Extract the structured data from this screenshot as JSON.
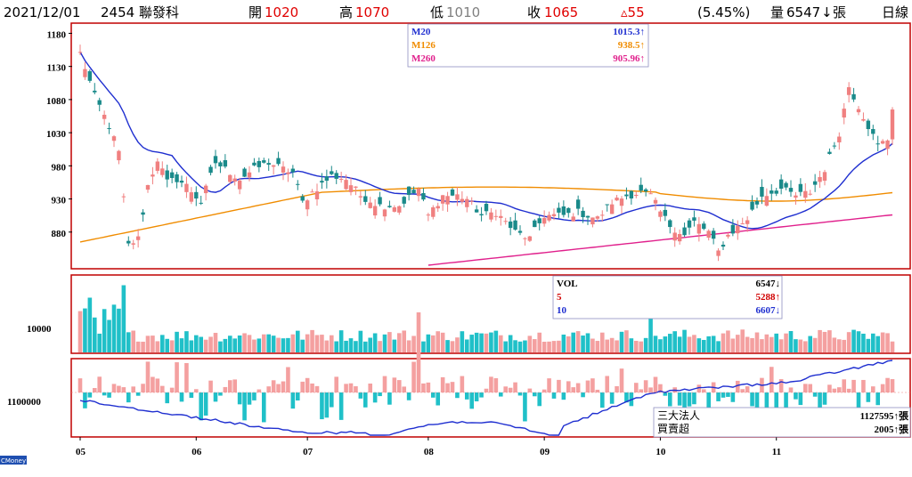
{
  "header": {
    "date": "2021/12/01",
    "stock": "2454 聯發科",
    "open_label": "開",
    "open_value": "1020",
    "high_label": "高",
    "high_value": "1070",
    "low_label": "低",
    "low_value": "1010",
    "close_label": "收",
    "close_value": "1065",
    "change": "▵55",
    "change_pct": "(5.45%)",
    "volume_label": "量",
    "volume_value": "6547",
    "volume_unit": "張",
    "period": "日線"
  },
  "colors": {
    "up": "#f08080",
    "down": "#1a8a8a",
    "up_vol": "#f4a0a0",
    "down_vol": "#20c0c8",
    "ma20": "#1f2fd0",
    "ma126": "#f08c00",
    "ma260": "#e0208c",
    "frame": "#c00000"
  },
  "legend": {
    "ma": [
      {
        "name": "M20",
        "value": "1015.3↑",
        "color": "#1f2fd0"
      },
      {
        "name": "M126",
        "value": "938.5↑",
        "color": "#f08c00"
      },
      {
        "name": "M260",
        "value": "905.96↑",
        "color": "#e0208c"
      }
    ],
    "vol": [
      {
        "name": "VOL",
        "value": "6547↓",
        "color": "#000000"
      },
      {
        "name": "5",
        "value": "5288↑",
        "color": "#d00000"
      },
      {
        "name": "10",
        "value": "6607↓",
        "color": "#1f2fd0"
      }
    ],
    "inst": [
      {
        "name": "三大法人",
        "value": "1127595↑張"
      },
      {
        "name": "買賣超",
        "value": "2005↑張"
      }
    ]
  },
  "chart_data": {
    "type": "candlestick",
    "ylim": [
      830,
      1190
    ],
    "price_ticks": [
      "1180",
      "1130",
      "1080",
      "1030",
      "980",
      "930",
      "880"
    ],
    "volume_tick": "10000",
    "inst_tick": "1100000",
    "x_labels": [
      "05",
      "06",
      "07",
      "08",
      "09",
      "10",
      "11"
    ],
    "watermark": "CMoney",
    "close_anchors": [
      [
        0,
        1150
      ],
      [
        3,
        1085
      ],
      [
        6,
        1040
      ],
      [
        8,
        1000
      ],
      [
        10,
        860
      ],
      [
        12,
        870
      ],
      [
        14,
        950
      ],
      [
        16,
        990
      ],
      [
        18,
        955
      ],
      [
        20,
        960
      ],
      [
        22,
        950
      ],
      [
        25,
        925
      ],
      [
        28,
        985
      ],
      [
        30,
        975
      ],
      [
        33,
        960
      ],
      [
        36,
        975
      ],
      [
        39,
        985
      ],
      [
        42,
        975
      ],
      [
        44,
        970
      ],
      [
        46,
        925
      ],
      [
        48,
        940
      ],
      [
        52,
        965
      ],
      [
        55,
        960
      ],
      [
        58,
        935
      ],
      [
        62,
        920
      ],
      [
        66,
        920
      ],
      [
        70,
        945
      ],
      [
        72,
        905
      ],
      [
        75,
        935
      ],
      [
        78,
        935
      ],
      [
        80,
        930
      ],
      [
        83,
        905
      ],
      [
        86,
        910
      ],
      [
        90,
        880
      ],
      [
        93,
        870
      ],
      [
        96,
        905
      ],
      [
        100,
        905
      ],
      [
        103,
        910
      ],
      [
        107,
        900
      ],
      [
        110,
        925
      ],
      [
        113,
        935
      ],
      [
        116,
        940
      ],
      [
        118,
        935
      ],
      [
        120,
        910
      ],
      [
        122,
        890
      ],
      [
        125,
        875
      ],
      [
        127,
        895
      ],
      [
        130,
        880
      ],
      [
        132,
        850
      ],
      [
        134,
        875
      ],
      [
        138,
        900
      ],
      [
        141,
        935
      ],
      [
        145,
        945
      ],
      [
        148,
        935
      ],
      [
        151,
        940
      ],
      [
        154,
        975
      ],
      [
        157,
        1030
      ],
      [
        159,
        1100
      ],
      [
        161,
        1070
      ],
      [
        163,
        1040
      ],
      [
        165,
        1010
      ],
      [
        167,
        1020
      ],
      [
        168,
        1030
      ]
    ],
    "ma260_end": 905.96,
    "ma126_end": 938.5,
    "ma20_end": 1015.3
  }
}
